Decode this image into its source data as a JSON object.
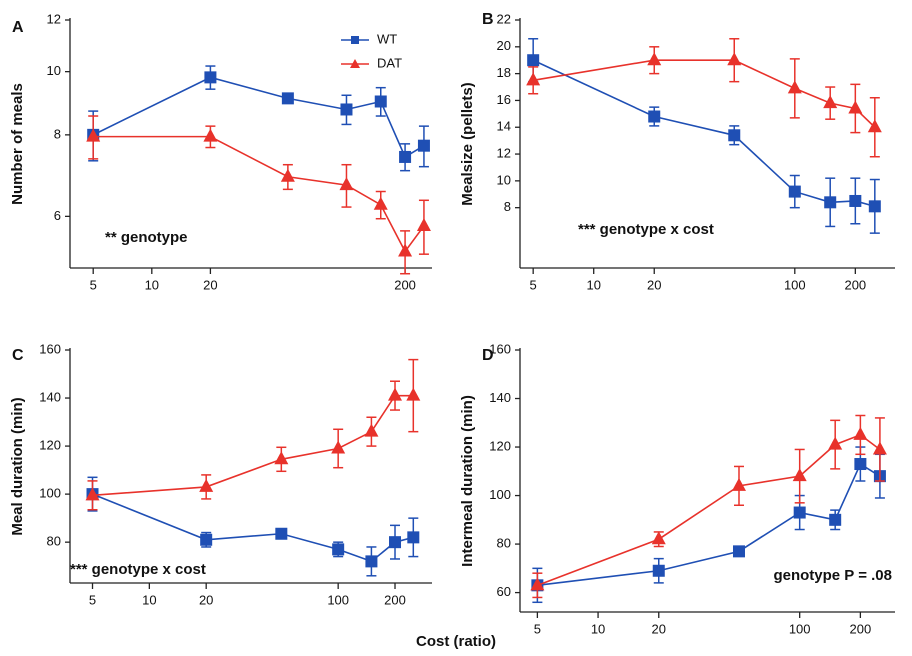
{
  "x_label": "Cost (ratio)",
  "chart_data": [
    {
      "type": "line",
      "panel_label": "A",
      "ylabel": "Number of meals",
      "annotation": "** genotype",
      "xlog": true,
      "ylog": true,
      "x": [
        5,
        20,
        50,
        100,
        150,
        200,
        250
      ],
      "xlim": [
        3.8,
        275
      ],
      "xticks": [
        5,
        10,
        20,
        200
      ],
      "ylim": [
        5,
        12
      ],
      "yticks": [
        6,
        8,
        10,
        12
      ],
      "legend": "top-center",
      "series": [
        {
          "name": "WT",
          "color": "#1f4fb4",
          "marker": "square",
          "values": [
            8.0,
            9.8,
            9.1,
            8.75,
            9.0,
            7.4,
            7.7
          ],
          "errors": [
            0.7,
            0.4,
            0.15,
            0.45,
            0.45,
            0.35,
            0.55
          ]
        },
        {
          "name": "DAT",
          "color": "#e8322b",
          "marker": "triangle",
          "values": [
            7.95,
            7.95,
            6.9,
            6.7,
            6.25,
            5.3,
            5.8
          ],
          "errors": [
            0.6,
            0.3,
            0.3,
            0.5,
            0.3,
            0.4,
            0.55
          ]
        }
      ]
    },
    {
      "type": "line",
      "panel_label": "B",
      "ylabel": "Mealsize (pellets)",
      "annotation": "*** genotype x cost",
      "xlog": true,
      "x": [
        5,
        20,
        50,
        100,
        150,
        200,
        250
      ],
      "xlim": [
        4.3,
        315
      ],
      "xticks": [
        5,
        10,
        20,
        100,
        200
      ],
      "ylim": [
        3.5,
        22
      ],
      "yticks": [
        8,
        10,
        12,
        14,
        16,
        18,
        20,
        22
      ],
      "series": [
        {
          "color": "#1f4fb4",
          "marker": "square",
          "values": [
            19,
            14.8,
            13.4,
            9.2,
            8.4,
            8.5,
            8.1
          ],
          "errors": [
            1.6,
            0.7,
            0.7,
            1.2,
            1.8,
            1.7,
            2.0
          ]
        },
        {
          "color": "#e8322b",
          "marker": "triangle",
          "values": [
            17.5,
            19,
            19,
            16.9,
            15.8,
            15.4,
            14
          ],
          "errors": [
            1,
            1,
            1.6,
            2.2,
            1.2,
            1.8,
            2.2
          ]
        }
      ]
    },
    {
      "type": "line",
      "panel_label": "C",
      "ylabel": "Meal duration (min)",
      "annotation": "*** genotype x cost",
      "xlog": true,
      "x": [
        5,
        20,
        50,
        100,
        150,
        200,
        250
      ],
      "xlim": [
        3.8,
        314
      ],
      "xticks": [
        5,
        10,
        20,
        100,
        200
      ],
      "ylim": [
        63,
        160
      ],
      "yticks": [
        80,
        100,
        120,
        140,
        160
      ],
      "series": [
        {
          "color": "#1f4fb4",
          "marker": "square",
          "values": [
            100,
            81,
            83.5,
            77,
            72,
            80,
            82
          ],
          "errors": [
            7,
            3,
            2,
            3,
            6,
            7,
            8
          ]
        },
        {
          "color": "#e8322b",
          "marker": "triangle",
          "values": [
            99.5,
            103,
            114.5,
            119,
            126,
            141,
            141
          ],
          "errors": [
            6,
            5,
            5,
            8,
            6,
            6,
            15
          ]
        }
      ]
    },
    {
      "type": "line",
      "panel_label": "D",
      "ylabel": "Intermeal duration (min)",
      "annotation": "genotype P = .08",
      "xlog": true,
      "x": [
        5,
        20,
        50,
        100,
        150,
        200,
        250
      ],
      "xlim": [
        4.1,
        297
      ],
      "xticks": [
        5,
        10,
        20,
        100,
        200
      ],
      "ylim": [
        52,
        160
      ],
      "yticks": [
        60,
        80,
        100,
        120,
        140,
        160
      ],
      "series": [
        {
          "color": "#1f4fb4",
          "marker": "square",
          "values": [
            63,
            69,
            77,
            93,
            90,
            113,
            108
          ],
          "errors": [
            7,
            5,
            2,
            7,
            4,
            7,
            9
          ]
        },
        {
          "color": "#e8322b",
          "marker": "triangle",
          "values": [
            63,
            82,
            104,
            108,
            121,
            125,
            119
          ],
          "errors": [
            5,
            3,
            8,
            11,
            10,
            8,
            13
          ]
        }
      ]
    }
  ]
}
